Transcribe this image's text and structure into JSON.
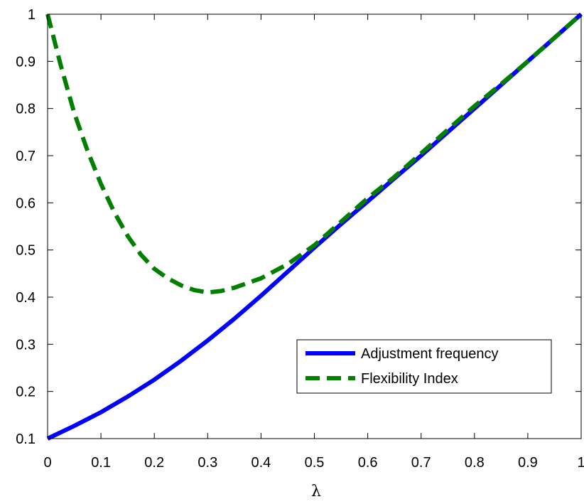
{
  "chart_data": {
    "type": "line",
    "title": "",
    "xlabel": "λ",
    "ylabel": "",
    "xlim": [
      0,
      1
    ],
    "ylim": [
      0.1,
      1
    ],
    "x_ticks": [
      "0",
      "0.1",
      "0.2",
      "0.3",
      "0.4",
      "0.5",
      "0.6",
      "0.7",
      "0.8",
      "0.9",
      "1"
    ],
    "y_ticks": [
      "0.1",
      "0.2",
      "0.3",
      "0.4",
      "0.5",
      "0.6",
      "0.7",
      "0.8",
      "0.9",
      "1"
    ],
    "grid": false,
    "legend_position": "bottom-right",
    "series": [
      {
        "name": "Adjustment frequency",
        "style": "solid",
        "color": "#0000ff",
        "x": [
          0,
          0.05,
          0.1,
          0.15,
          0.2,
          0.25,
          0.3,
          0.35,
          0.4,
          0.45,
          0.5,
          0.55,
          0.6,
          0.65,
          0.7,
          0.75,
          0.8,
          0.85,
          0.9,
          0.95,
          1
        ],
        "y": [
          0.1,
          0.127,
          0.156,
          0.189,
          0.225,
          0.265,
          0.308,
          0.354,
          0.403,
          0.454,
          0.505,
          0.555,
          0.603,
          0.652,
          0.7,
          0.75,
          0.8,
          0.85,
          0.9,
          0.95,
          1
        ]
      },
      {
        "name": "Flexibility Index",
        "style": "dashed",
        "color": "#007f00",
        "x": [
          0,
          0.025,
          0.05,
          0.075,
          0.1,
          0.125,
          0.15,
          0.175,
          0.2,
          0.225,
          0.25,
          0.275,
          0.3,
          0.325,
          0.35,
          0.4,
          0.45,
          0.5,
          0.55,
          0.6,
          0.65,
          0.7,
          0.75,
          0.8,
          0.85,
          0.9,
          0.95,
          1
        ],
        "y": [
          1,
          0.89,
          0.79,
          0.71,
          0.64,
          0.58,
          0.53,
          0.49,
          0.46,
          0.44,
          0.425,
          0.415,
          0.41,
          0.413,
          0.42,
          0.44,
          0.47,
          0.51,
          0.56,
          0.61,
          0.655,
          0.705,
          0.755,
          0.805,
          0.852,
          0.9,
          0.95,
          1
        ]
      }
    ]
  }
}
